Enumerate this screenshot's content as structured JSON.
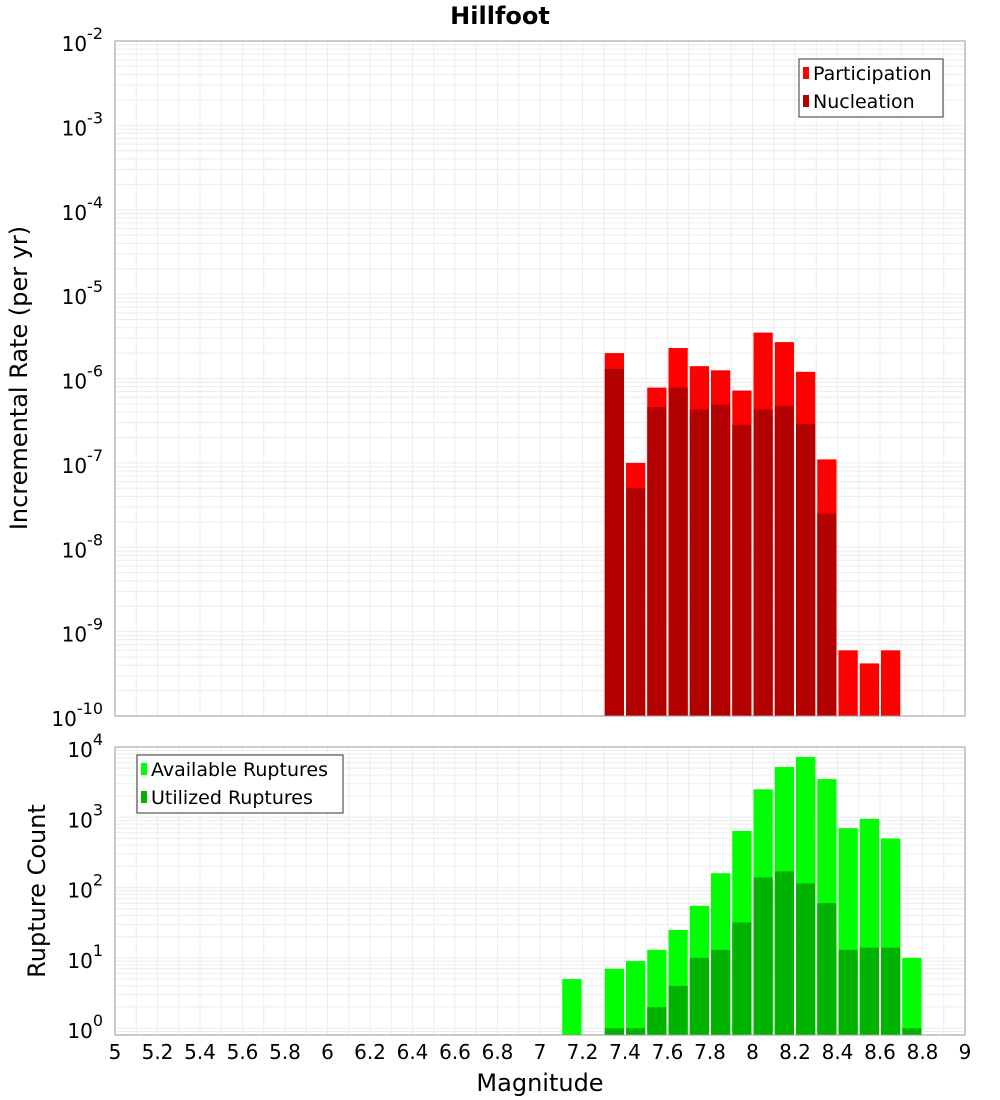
{
  "chart_data": [
    {
      "type": "bar",
      "title": "Hillfoot",
      "ylabel": "Incremental Rate (per yr)",
      "xlabel": "",
      "yscale": "log",
      "ylim": [
        1e-10,
        0.01
      ],
      "xlim": [
        5,
        9
      ],
      "grid": true,
      "legend_position": "top-right",
      "y_ticks": [
        {
          "base": "10",
          "exp": "-10",
          "value": 1e-10
        },
        {
          "base": "10",
          "exp": "-9",
          "value": 1e-09
        },
        {
          "base": "10",
          "exp": "-8",
          "value": 1e-08
        },
        {
          "base": "10",
          "exp": "-7",
          "value": 1e-07
        },
        {
          "base": "10",
          "exp": "-6",
          "value": 1e-06
        },
        {
          "base": "10",
          "exp": "-5",
          "value": 1e-05
        },
        {
          "base": "10",
          "exp": "-4",
          "value": 0.0001
        },
        {
          "base": "10",
          "exp": "-3",
          "value": 0.001
        },
        {
          "base": "10",
          "exp": "-2",
          "value": 0.01
        }
      ],
      "x": [
        7.35,
        7.45,
        7.55,
        7.65,
        7.75,
        7.85,
        7.95,
        8.05,
        8.15,
        8.25,
        8.35,
        8.45,
        8.55,
        8.65
      ],
      "series": [
        {
          "name": "Participation",
          "color": "#ff0000",
          "values": [
            2e-06,
            1e-07,
            7.8e-07,
            2.3e-06,
            1.4e-06,
            1.25e-06,
            7.2e-07,
            3.5e-06,
            2.7e-06,
            1.2e-06,
            1.1e-07,
            6e-10,
            4.2e-10,
            6e-10
          ]
        },
        {
          "name": "Nucleation",
          "color": "#b30000",
          "values": [
            1.3e-06,
            5e-08,
            4.6e-07,
            7.8e-07,
            4.3e-07,
            4.9e-07,
            2.8e-07,
            4.3e-07,
            4.7e-07,
            2.9e-07,
            2.5e-08,
            null,
            null,
            null
          ]
        }
      ]
    },
    {
      "type": "bar",
      "title": "",
      "ylabel": "Rupture Count",
      "xlabel": "Magnitude",
      "yscale": "log",
      "ylim": [
        0.8,
        10000
      ],
      "xlim": [
        5,
        9
      ],
      "grid": true,
      "legend_position": "top-left",
      "x_ticks": [
        "5",
        "5.2",
        "5.4",
        "5.6",
        "5.8",
        "6",
        "6.2",
        "6.4",
        "6.6",
        "6.8",
        "7",
        "7.2",
        "7.4",
        "7.6",
        "7.8",
        "8",
        "8.2",
        "8.4",
        "8.6",
        "8.8",
        "9"
      ],
      "x_tick_values": [
        5,
        5.2,
        5.4,
        5.6,
        5.8,
        6,
        6.2,
        6.4,
        6.6,
        6.8,
        7,
        7.2,
        7.4,
        7.6,
        7.8,
        8,
        8.2,
        8.4,
        8.6,
        8.8,
        9
      ],
      "y_ticks": [
        {
          "base": "10",
          "exp": "0",
          "value": 1
        },
        {
          "base": "10",
          "exp": "1",
          "value": 10
        },
        {
          "base": "10",
          "exp": "2",
          "value": 100
        },
        {
          "base": "10",
          "exp": "3",
          "value": 1000
        },
        {
          "base": "10",
          "exp": "4",
          "value": 10000
        }
      ],
      "x": [
        7.15,
        7.35,
        7.45,
        7.55,
        7.65,
        7.75,
        7.85,
        7.95,
        8.05,
        8.15,
        8.25,
        8.35,
        8.45,
        8.55,
        8.65,
        8.75
      ],
      "series": [
        {
          "name": "Available Ruptures",
          "color": "#00ff00",
          "values": [
            5,
            7,
            9,
            13,
            25,
            55,
            160,
            640,
            2500,
            5200,
            7200,
            3500,
            700,
            950,
            500,
            10
          ]
        },
        {
          "name": "Utilized Ruptures",
          "color": "#00b300",
          "values": [
            null,
            1,
            1,
            2,
            4,
            10,
            13,
            32,
            140,
            170,
            115,
            60,
            13,
            14,
            14,
            1
          ]
        }
      ]
    }
  ]
}
